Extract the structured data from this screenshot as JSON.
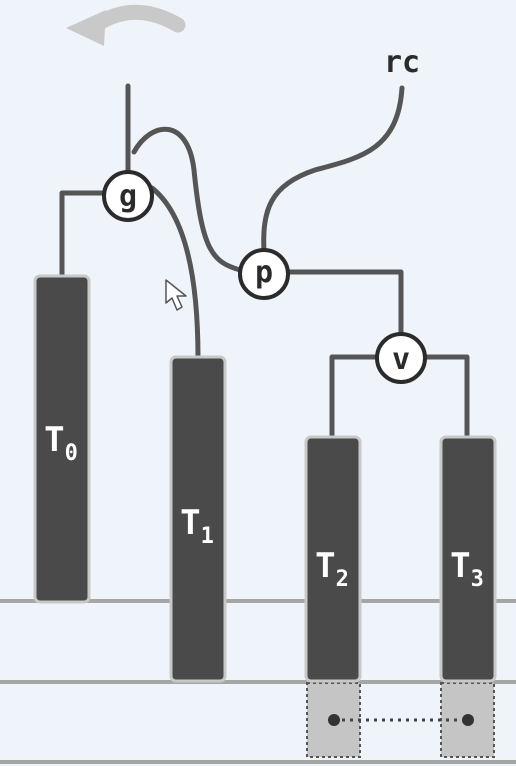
{
  "colors": {
    "background": "#eff4fa",
    "bar_fill": "#4a4a4a",
    "bar_border": "#c8c8c8",
    "line": "#555555",
    "guide_line": "#a6a6a6",
    "arrow": "#c9c9c9",
    "slot_fill": "#c5c5c5"
  },
  "icons": {
    "undo_arrow": "curved-arrow-left-icon",
    "cursor": "mouse-pointer-icon"
  },
  "root_label": "rc",
  "nodes": {
    "g": "g",
    "p": "p",
    "v": "v"
  },
  "bars": [
    {
      "base": "T",
      "sub": "0"
    },
    {
      "base": "T",
      "sub": "1"
    },
    {
      "base": "T",
      "sub": "2"
    },
    {
      "base": "T",
      "sub": "3"
    }
  ]
}
